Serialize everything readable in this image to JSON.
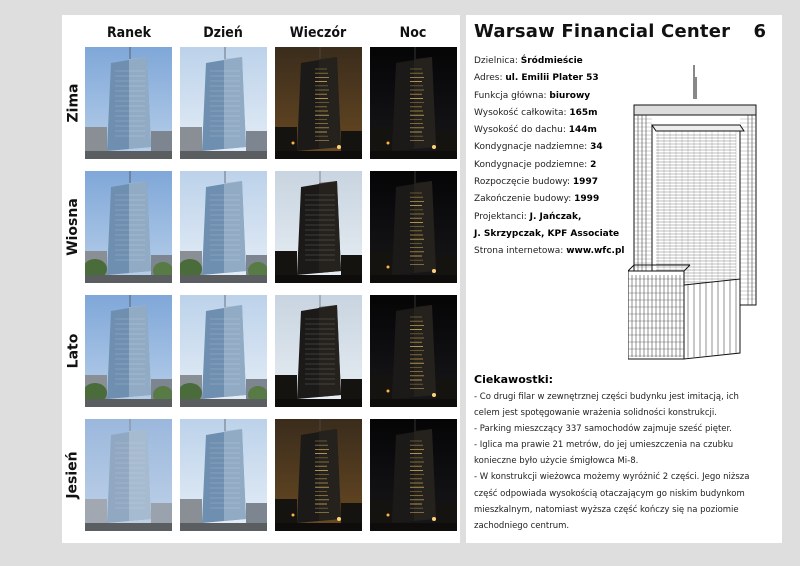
{
  "seasons_grid": {
    "columns": [
      "Ranek",
      "Dzień",
      "Wieczór",
      "Noc"
    ],
    "rows": [
      "Zima",
      "Wiosna",
      "Lato",
      "Jesień"
    ]
  },
  "building": {
    "title": "Warsaw Financial Center",
    "page_number": "6",
    "details": [
      {
        "label": "Dzielnica: ",
        "value": "Śródmieście"
      },
      {
        "label": "Adres: ",
        "value": "ul. Emilii Plater 53"
      },
      {
        "label": "Funkcja główna: ",
        "value": "biurowy"
      },
      {
        "label": "Wysokość całkowita: ",
        "value": "165m"
      },
      {
        "label": "Wysokość do dachu: ",
        "value": "144m"
      },
      {
        "label": "Kondygnacje nadziemne: ",
        "value": "34"
      },
      {
        "label": "Kondygnacje podziemne: ",
        "value": "2"
      },
      {
        "label": "Rozpoczęcie budowy: ",
        "value": "1997"
      },
      {
        "label": "Zakończenie budowy: ",
        "value": "1999"
      },
      {
        "label": "Projektanci: ",
        "value": "J. Jańczak,"
      },
      {
        "label": "",
        "value": "J. Skrzypczak, KPF Associate"
      },
      {
        "label": "Strona internetowa: ",
        "value": "www.wfc.pl"
      }
    ]
  },
  "facts": {
    "title": "Ciekawostki:",
    "lines": [
      "- Co drugi filar w zewnętrznej części budynku jest imitacją, ich",
      "celem jest spotęgowanie wrażenia solidności konstrukcji.",
      "- Parking mieszczący 337 samochodów zajmuje sześć pięter.",
      "- Iglica ma prawie 21 metrów, do jej umieszczenia na czubku",
      "konieczne było użycie śmigłowca Mi-8.",
      "- W konstrukcji wieżowca możemy wyróżnić 2 części. Jego niższa",
      "część odpowiada wysokością otaczającym go niskim budynkom",
      "mieszkalnym, natomiast wyższa część kończy się na poziomie",
      "zachodniego centrum."
    ]
  },
  "colors": {
    "morning_sky": "#8fb6e0",
    "day_sky": "#c9dbee",
    "evening_sky": "#2a2118",
    "night_sky": "#0c0c0e",
    "building_glass": "#6f8fb0"
  }
}
